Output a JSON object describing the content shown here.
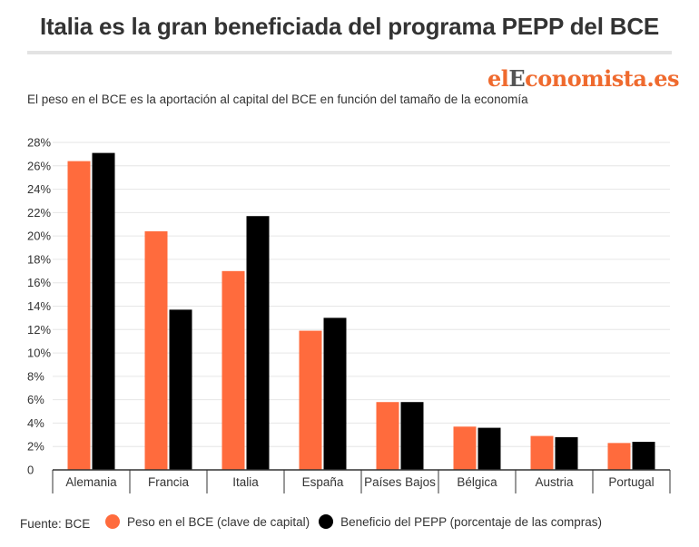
{
  "header": {
    "title": "Italia es la gran beneficiada del programa PEPP del BCE",
    "subtitle": "El peso en el BCE es la aportación al capital del BCE en función del tamaño de la economía"
  },
  "logo": {
    "text_before": "el",
    "text_highlight": "E",
    "text_after": "conomista.es"
  },
  "footer": {
    "source": "Fuente: BCE"
  },
  "colors": {
    "series_1": "#ff6b3d",
    "series_2": "#000000",
    "grid": "#e6e6e6",
    "axis": "#333333"
  },
  "chart_data": {
    "type": "bar",
    "title": "Italia es la gran beneficiada del programa PEPP del BCE",
    "xlabel": "",
    "ylabel": "",
    "ylim": [
      0,
      28
    ],
    "yticks": [
      0,
      2,
      4,
      6,
      8,
      10,
      12,
      14,
      16,
      18,
      20,
      22,
      24,
      26,
      28
    ],
    "ytick_labels": [
      "0",
      "2%",
      "4%",
      "6%",
      "8%",
      "10%",
      "12%",
      "14%",
      "16%",
      "18%",
      "20%",
      "22%",
      "24%",
      "26%",
      "28%"
    ],
    "grid": true,
    "legend_position": "bottom",
    "categories": [
      "Alemania",
      "Francia",
      "Italia",
      "España",
      "Países Bajos",
      "Bélgica",
      "Austria",
      "Portugal"
    ],
    "series": [
      {
        "name": "Peso en el BCE (clave de capital)",
        "color": "#ff6b3d",
        "values": [
          26.4,
          20.4,
          17.0,
          11.9,
          5.8,
          3.7,
          2.9,
          2.3
        ]
      },
      {
        "name": "Beneficio del PEPP (porcentaje de las compras)",
        "color": "#000000",
        "values": [
          27.1,
          13.7,
          21.7,
          13.0,
          5.8,
          3.6,
          2.8,
          2.4
        ]
      }
    ]
  }
}
